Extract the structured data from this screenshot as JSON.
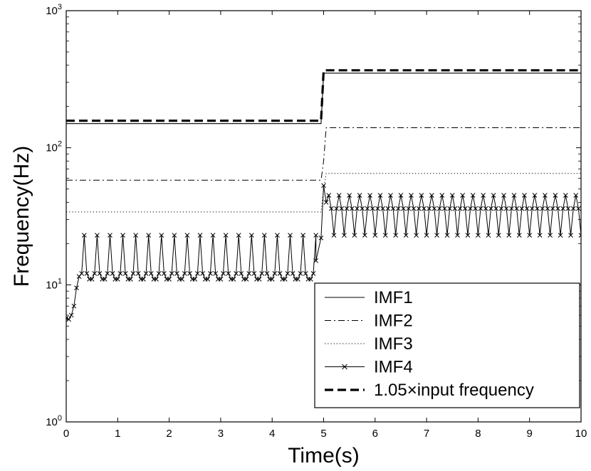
{
  "chart_data": {
    "type": "line",
    "xlabel": "Time(s)",
    "ylabel": "Frequency(Hz)",
    "xlim": [
      0,
      10
    ],
    "ylim": [
      1,
      1000
    ],
    "yscale": "log",
    "grid": false,
    "legend_position": "bottom-right",
    "x_ticks": [
      0,
      1,
      2,
      3,
      4,
      5,
      6,
      7,
      8,
      9,
      10
    ],
    "x_tick_labels": [
      "0",
      "1",
      "2",
      "3",
      "4",
      "5",
      "6",
      "7",
      "8",
      "9",
      "10"
    ],
    "y_ticks": [
      1,
      10,
      100,
      1000
    ],
    "y_tick_labels": [
      {
        "base": "10",
        "exp": "0"
      },
      {
        "base": "10",
        "exp": "1"
      },
      {
        "base": "10",
        "exp": "2"
      },
      {
        "base": "10",
        "exp": "3"
      }
    ],
    "series": [
      {
        "name": "IMF1",
        "style": "solid",
        "x": [
          0,
          4.95,
          5.0,
          10
        ],
        "y": [
          150,
          150,
          350,
          350
        ]
      },
      {
        "name": "IMF2",
        "style": "dashdot",
        "x": [
          0,
          4.95,
          5.0,
          5.05,
          10
        ],
        "y": [
          58,
          58,
          80,
          140,
          140
        ]
      },
      {
        "name": "IMF3",
        "style": "dotted",
        "x": [
          0,
          4.95,
          5.0,
          5.05,
          10
        ],
        "y": [
          34,
          34,
          50,
          65,
          65
        ]
      },
      {
        "name": "IMF4",
        "style": "solid-x-marker",
        "description": "starts near 5.7 Hz, rises to a ~11 Hz baseline with periodic spikes to ~23 Hz every 0.25 s until 5 s; then a peak of ~53 Hz at 5.0 s and oscillation between ~23 and ~46 Hz (plus a ~36 Hz trace) to 10 s",
        "segments": {
          "start": {
            "x": [
              0,
              0.05,
              0.1,
              0.15,
              0.2,
              0.25
            ],
            "y": [
              5.7,
              5.6,
              6.0,
              7.0,
              9.5,
              11.5
            ]
          },
          "pre": {
            "x_start": 0.3,
            "x_end": 4.95,
            "base": 11,
            "peak": 23,
            "period": 0.25,
            "first_peak": 0.35
          },
          "transition": {
            "x": [
              4.85,
              4.95,
              5.0,
              5.05
            ],
            "y": [
              15,
              22,
              53,
              40
            ]
          },
          "post": {
            "x_start": 5.1,
            "x_end": 10,
            "high": 45,
            "low": 23,
            "mid": 36,
            "step": 0.05
          }
        }
      },
      {
        "name": "1.05×input frequency",
        "style": "dashed-thick",
        "x": [
          0,
          4.95,
          5.0,
          10
        ],
        "y": [
          157.5,
          157.5,
          367.5,
          367.5
        ]
      }
    ]
  }
}
